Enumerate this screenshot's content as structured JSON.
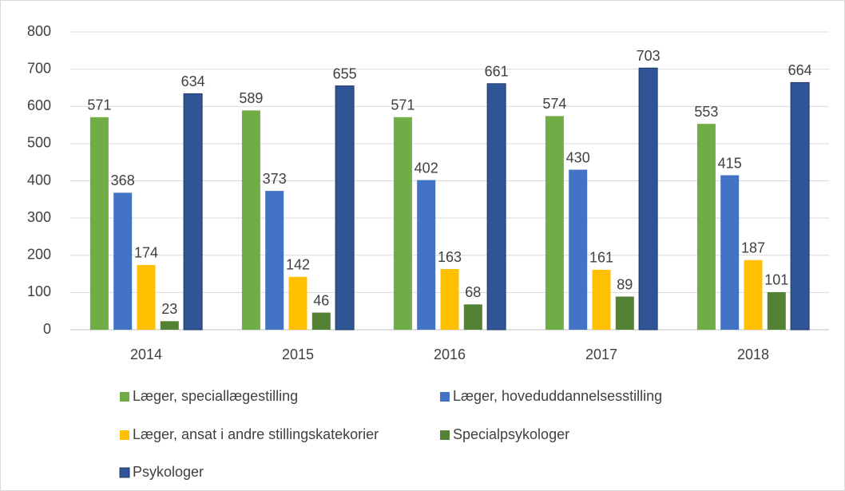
{
  "chart_data": {
    "type": "bar",
    "categories": [
      "2014",
      "2015",
      "2016",
      "2017",
      "2018"
    ],
    "series": [
      {
        "name": "Læger, speciallægestilling",
        "color": "#70ad47",
        "values": [
          571,
          589,
          571,
          574,
          553
        ]
      },
      {
        "name": "Læger, hoveduddannelsesstilling",
        "color": "#4472c4",
        "values": [
          368,
          373,
          402,
          430,
          415
        ]
      },
      {
        "name": "Læger, ansat i andre stillingskatekorier",
        "color": "#ffc000",
        "values": [
          174,
          142,
          163,
          161,
          187
        ]
      },
      {
        "name": "Specialpsykologer",
        "color": "#548235",
        "values": [
          23,
          46,
          68,
          89,
          101
        ]
      },
      {
        "name": "Psykologer",
        "color": "#2f5597",
        "values": [
          634,
          655,
          661,
          703,
          664
        ]
      }
    ],
    "ylim": [
      0,
      800
    ],
    "yticks": [
      0,
      100,
      200,
      300,
      400,
      500,
      600,
      700,
      800
    ],
    "grid": true,
    "legend_position": "bottom"
  }
}
